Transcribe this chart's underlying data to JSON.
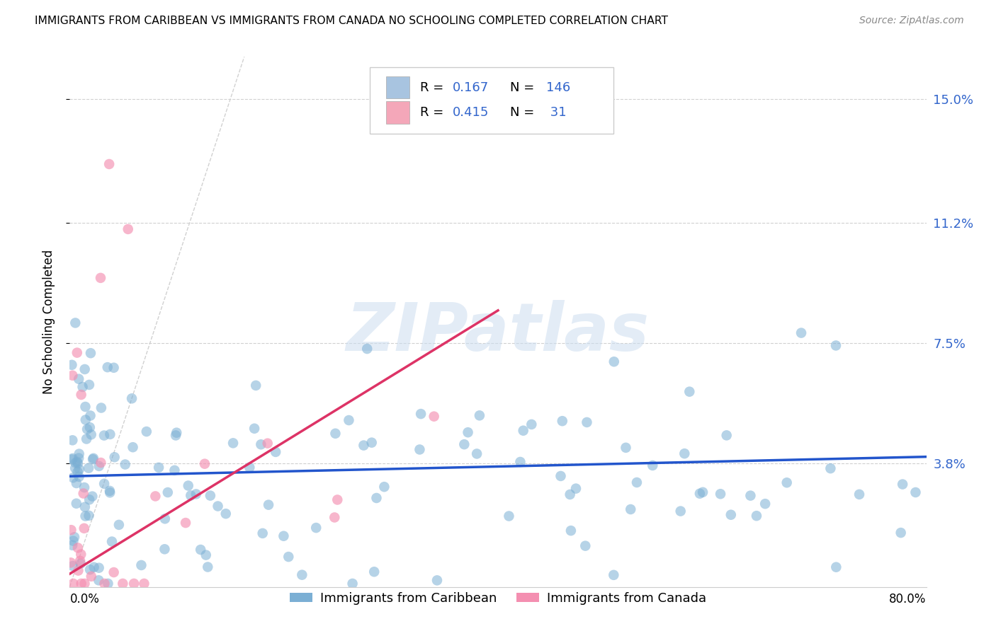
{
  "title": "IMMIGRANTS FROM CARIBBEAN VS IMMIGRANTS FROM CANADA NO SCHOOLING COMPLETED CORRELATION CHART",
  "source": "Source: ZipAtlas.com",
  "ylabel": "No Schooling Completed",
  "ytick_labels": [
    "3.8%",
    "7.5%",
    "11.2%",
    "15.0%"
  ],
  "ytick_values": [
    0.038,
    0.075,
    0.112,
    0.15
  ],
  "xmin": 0.0,
  "xmax": 0.8,
  "ymin": 0.0,
  "ymax": 0.163,
  "watermark_text": "ZIPatlas",
  "series1_color": "#7bafd4",
  "series2_color": "#f48fb1",
  "trendline1_color": "#2255cc",
  "trendline2_color": "#dd3366",
  "diagonal_color": "#cccccc",
  "legend_color1": "#a8c4e0",
  "legend_color2": "#f4a7b9",
  "R1": 0.167,
  "N1": 146,
  "R2": 0.415,
  "N2": 31,
  "trendline1_x": [
    0.0,
    0.8
  ],
  "trendline1_y": [
    0.034,
    0.04
  ],
  "trendline2_x": [
    0.0,
    0.4
  ],
  "trendline2_y": [
    0.004,
    0.085
  ]
}
